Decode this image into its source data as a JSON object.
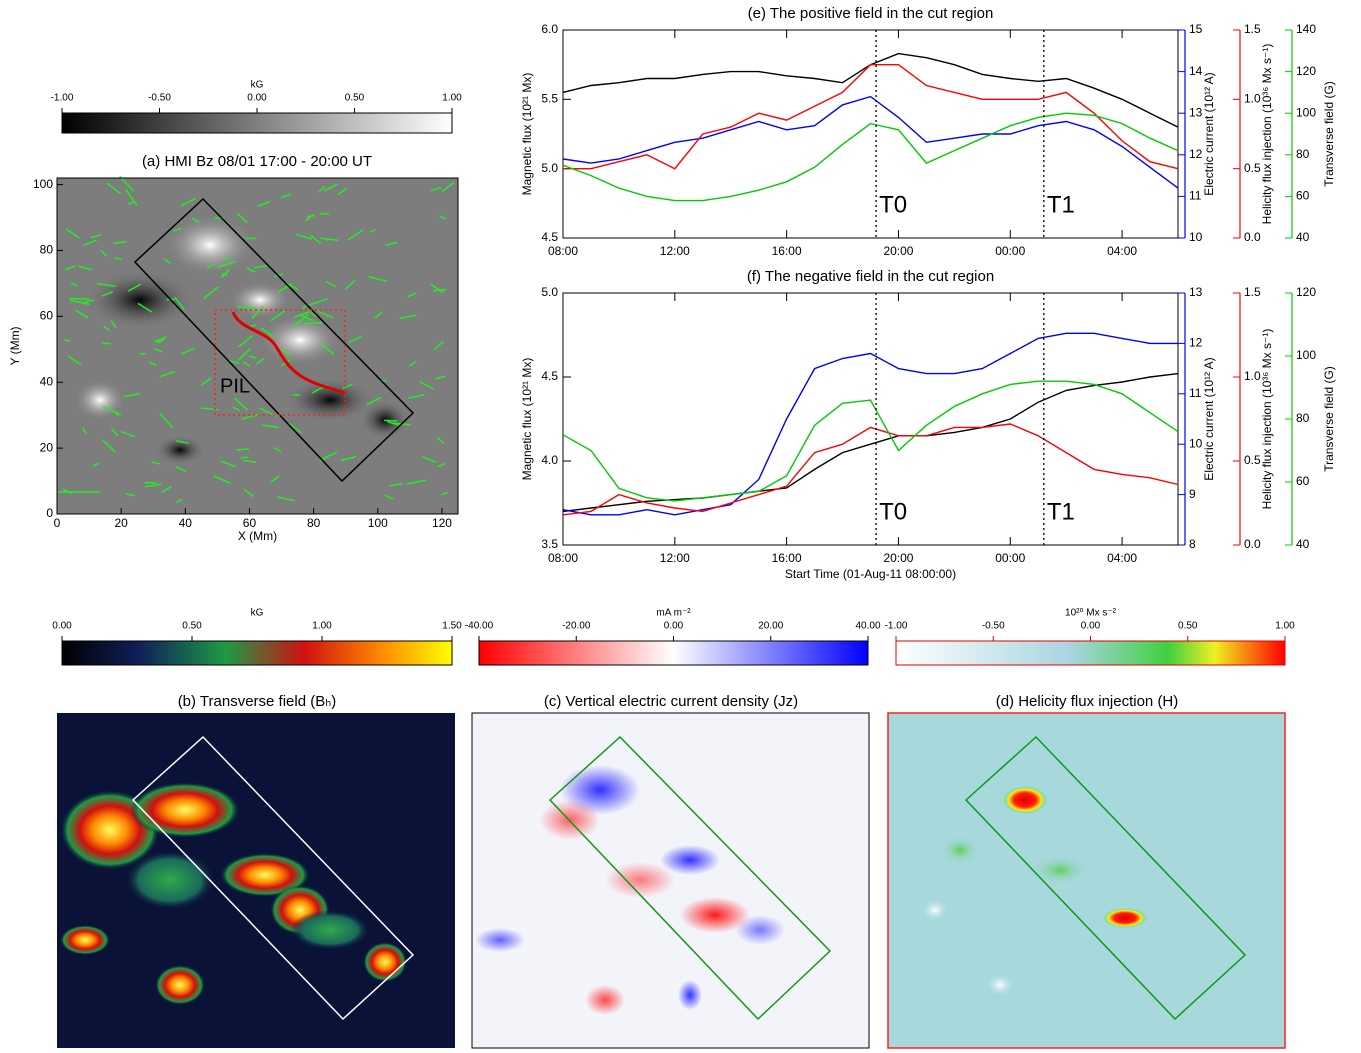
{
  "chart_data": [
    {
      "type": "line",
      "title": "(e) The positive field in the cut region",
      "x": [
        0,
        1,
        2,
        3,
        4,
        5,
        6,
        7,
        8,
        9,
        10,
        11,
        12,
        13,
        14,
        15,
        16,
        17,
        18,
        19,
        20,
        21,
        22
      ],
      "xlim": [
        0,
        22
      ],
      "xticks": [
        {
          "value": 0,
          "label": "08:00"
        },
        {
          "value": 4,
          "label": "12:00"
        },
        {
          "value": 8,
          "label": "16:00"
        },
        {
          "value": 12,
          "label": "20:00"
        },
        {
          "value": 16,
          "label": "00:00"
        },
        {
          "value": 20,
          "label": "04:00"
        }
      ],
      "ylabel": "Magnetic flux (10²¹ Mx)",
      "ylim": [
        4.5,
        6.0
      ],
      "yticks": [
        4.5,
        {
          "value": 5,
          "label": "5.0"
        },
        5.5,
        {
          "value": 6,
          "label": "6.0"
        }
      ],
      "y2label": "Electric current (10¹² A)",
      "y2lim": [
        10,
        15
      ],
      "y2ticks": [
        10,
        11,
        12,
        13,
        14,
        15
      ],
      "y3label": "Helicity flux injection (10³⁶ Mx s⁻¹)",
      "y3lim": [
        0,
        1.5
      ],
      "y3ticks": [
        {
          "value": 0,
          "label": "0.0"
        },
        0.5,
        {
          "value": 1,
          "label": "1.0"
        },
        1.5
      ],
      "y4label": "Transverse field (G)",
      "y4lim": [
        40,
        140
      ],
      "y4ticks": [
        40,
        60,
        80,
        100,
        120,
        140
      ],
      "series": [
        {
          "color": "#000000",
          "values": [
            5.55,
            5.6,
            5.62,
            5.65,
            5.65,
            5.68,
            5.7,
            5.7,
            5.67,
            5.65,
            5.62,
            5.75,
            5.83,
            5.8,
            5.75,
            5.68,
            5.65,
            5.63,
            5.65,
            5.58,
            5.5,
            5.4,
            5.3
          ]
        },
        {
          "color": "#0000ff",
          "axis": "y2",
          "values": [
            11.9,
            11.8,
            11.9,
            12.1,
            12.3,
            12.4,
            12.6,
            12.8,
            12.6,
            12.7,
            13.2,
            13.4,
            12.9,
            12.3,
            12.4,
            12.5,
            12.5,
            12.7,
            12.8,
            12.6,
            12.2,
            11.7,
            11.2
          ]
        },
        {
          "color": "#ff0000",
          "axis": "y3",
          "values": [
            0.5,
            0.5,
            0.55,
            0.6,
            0.5,
            0.75,
            0.8,
            0.9,
            0.85,
            0.95,
            1.05,
            1.25,
            1.25,
            1.1,
            1.05,
            1.0,
            1.0,
            1.0,
            1.05,
            0.9,
            0.7,
            0.55,
            0.5
          ]
        },
        {
          "color": "#00cc00",
          "axis": "y4",
          "values": [
            75,
            70,
            64,
            60,
            58,
            58,
            60,
            63,
            67,
            74,
            85,
            95,
            92,
            76,
            82,
            88,
            94,
            98,
            100,
            99,
            95,
            88,
            82
          ]
        }
      ],
      "annotations": [
        {
          "text": "T0",
          "x": 11.2
        },
        {
          "text": "T1",
          "x": 17.2
        }
      ]
    },
    {
      "type": "line",
      "title": "(f) The negative field in the cut region",
      "x": [
        0,
        1,
        2,
        3,
        4,
        5,
        6,
        7,
        8,
        9,
        10,
        11,
        12,
        13,
        14,
        15,
        16,
        17,
        18,
        19,
        20,
        21,
        22
      ],
      "xlim": [
        0,
        22
      ],
      "xticks": [
        {
          "value": 0,
          "label": "08:00"
        },
        {
          "value": 4,
          "label": "12:00"
        },
        {
          "value": 8,
          "label": "16:00"
        },
        {
          "value": 12,
          "label": "20:00"
        },
        {
          "value": 16,
          "label": "00:00"
        },
        {
          "value": 20,
          "label": "04:00"
        }
      ],
      "xlabel": "Start Time (01-Aug-11 08:00:00)",
      "ylabel": "Magnetic flux (10²¹ Mx)",
      "ylim": [
        3.5,
        5.0
      ],
      "yticks": [
        3.5,
        {
          "value": 4,
          "label": "4.0"
        },
        4.5,
        {
          "value": 5,
          "label": "5.0"
        }
      ],
      "y2label": "Electric current (10¹² A)",
      "y2lim": [
        8,
        13
      ],
      "y2ticks": [
        8,
        9,
        10,
        11,
        12,
        13
      ],
      "y3label": "Helicity flux injection (10³⁶ Mx s⁻¹)",
      "y3lim": [
        0,
        1.5
      ],
      "y3ticks": [
        {
          "value": 0,
          "label": "0.0"
        },
        0.5,
        {
          "value": 1,
          "label": "1.0"
        },
        1.5
      ],
      "y4label": "Transverse field (G)",
      "y4lim": [
        40,
        120
      ],
      "y4ticks": [
        40,
        60,
        80,
        100,
        120
      ],
      "series": [
        {
          "color": "#000000",
          "values": [
            3.7,
            3.72,
            3.74,
            3.76,
            3.77,
            3.78,
            3.8,
            3.82,
            3.84,
            3.95,
            4.05,
            4.1,
            4.15,
            4.15,
            4.17,
            4.2,
            4.25,
            4.35,
            4.42,
            4.45,
            4.47,
            4.5,
            4.52
          ]
        },
        {
          "color": "#0000ff",
          "axis": "y2",
          "values": [
            8.7,
            8.6,
            8.6,
            8.7,
            8.6,
            8.7,
            8.8,
            9.3,
            10.5,
            11.5,
            11.7,
            11.8,
            11.5,
            11.4,
            11.4,
            11.5,
            11.8,
            12.1,
            12.2,
            12.2,
            12.1,
            12.0,
            12.0
          ]
        },
        {
          "color": "#ff0000",
          "axis": "y3",
          "values": [
            0.18,
            0.2,
            0.3,
            0.25,
            0.22,
            0.2,
            0.25,
            0.3,
            0.35,
            0.55,
            0.6,
            0.7,
            0.65,
            0.65,
            0.7,
            0.7,
            0.72,
            0.65,
            0.55,
            0.45,
            0.42,
            0.4,
            0.36
          ]
        },
        {
          "color": "#00cc00",
          "axis": "y4",
          "values": [
            75,
            70,
            58,
            55,
            54,
            55,
            56,
            57,
            62,
            78,
            85,
            86,
            70,
            78,
            84,
            88,
            91,
            92,
            92,
            91,
            88,
            82,
            76
          ]
        }
      ],
      "annotations": [
        {
          "text": "T0",
          "x": 11.2
        },
        {
          "text": "T1",
          "x": 17.2
        }
      ]
    }
  ],
  "maps": [
    {
      "title": "(a) HMI Bz 08/01 17:00 - 20:00 UT",
      "xlabel": "X (Mm)",
      "ylabel": "Y (Mm)",
      "xlim": [
        0,
        125
      ],
      "xticks": [
        0,
        20,
        40,
        60,
        80,
        100,
        120
      ],
      "ylim": [
        0,
        102
      ],
      "yticks": [
        0,
        20,
        40,
        60,
        80,
        100
      ],
      "annotation": "PIL",
      "colorbar": {
        "label": "kG",
        "lim": [
          -1,
          1
        ],
        "ticks": [
          {
            "value": -1,
            "label": "-1.00"
          },
          {
            "value": -0.5,
            "label": "-0.50"
          },
          {
            "value": 0,
            "label": "0.00"
          },
          {
            "value": 0.5,
            "label": "0.50"
          },
          {
            "value": 1,
            "label": "1.00"
          }
        ]
      }
    },
    {
      "title": "(b) Transverse field (Bₕ)",
      "colorbar": {
        "label": "kG",
        "lim": [
          0,
          1.5
        ],
        "ticks": [
          {
            "value": 0,
            "label": "0.00"
          },
          {
            "value": 0.5,
            "label": "0.50"
          },
          {
            "value": 1,
            "label": "1.00"
          },
          {
            "value": 1.5,
            "label": "1.50"
          }
        ]
      }
    },
    {
      "title": "(c) Vertical electric current density (Jz)",
      "colorbar": {
        "label": "mA m⁻²",
        "lim": [
          -40,
          40
        ],
        "ticks": [
          {
            "value": -40,
            "label": "-40.00"
          },
          {
            "value": -20,
            "label": "-20.00"
          },
          {
            "value": 0,
            "label": "0.00"
          },
          {
            "value": 20,
            "label": "20.00"
          },
          {
            "value": 40,
            "label": "40.00"
          }
        ]
      }
    },
    {
      "title": "(d) Helicity flux injection (H)",
      "colorbar": {
        "label": "10²⁰ Mx s⁻²",
        "lim": [
          -1,
          1
        ],
        "ticks": [
          {
            "value": -1,
            "label": "-1.00"
          },
          {
            "value": -0.5,
            "label": "-0.50"
          },
          {
            "value": 0,
            "label": "0.00"
          },
          {
            "value": 0.5,
            "label": "0.50"
          },
          {
            "value": 1,
            "label": "1.00"
          }
        ]
      }
    }
  ]
}
